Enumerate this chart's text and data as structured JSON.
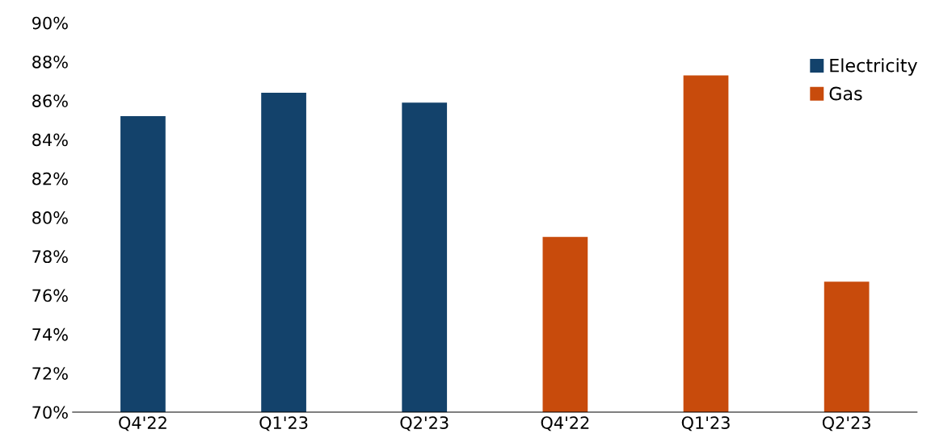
{
  "chart_data": {
    "type": "bar",
    "categories": [
      "Q4'22",
      "Q1'23",
      "Q2'23",
      "Q4'22",
      "Q1'23",
      "Q2'23"
    ],
    "series": [
      {
        "name": "Electricity",
        "color": "#13426b",
        "values": [
          85.2,
          86.4,
          85.9,
          null,
          null,
          null
        ]
      },
      {
        "name": "Gas",
        "color": "#c84b0c",
        "values": [
          null,
          null,
          null,
          79.0,
          87.3,
          76.7
        ]
      }
    ],
    "ylim": [
      70,
      90
    ],
    "yticks": [
      {
        "value": 70,
        "label": "70%"
      },
      {
        "value": 72,
        "label": "72%"
      },
      {
        "value": 74,
        "label": "74%"
      },
      {
        "value": 76,
        "label": "76%"
      },
      {
        "value": 78,
        "label": "78%"
      },
      {
        "value": 80,
        "label": "80%"
      },
      {
        "value": 82,
        "label": "82%"
      },
      {
        "value": 84,
        "label": "84%"
      },
      {
        "value": 86,
        "label": "86%"
      },
      {
        "value": 88,
        "label": "88%"
      },
      {
        "value": 90,
        "label": "90%"
      }
    ],
    "grid": false,
    "legend": "top right"
  }
}
